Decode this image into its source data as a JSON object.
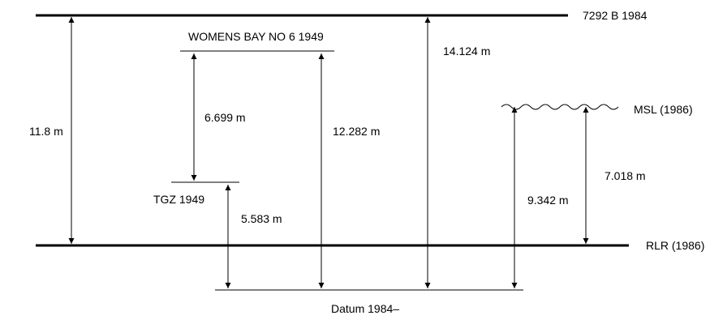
{
  "levels": {
    "top_benchmark": "7292 B 1984",
    "womens_bay": "WOMENS BAY NO 6 1949",
    "tgz": "TGZ 1949",
    "msl": "MSL (1986)",
    "rlr": "RLR (1986)",
    "datum": "Datum 1984–"
  },
  "measurements": {
    "rlr_to_top": "11.8 m",
    "womens_bay_to_tgz": "6.699 m",
    "tgz_to_datum": "5.583 m",
    "womens_bay_to_datum": "12.282 m",
    "top_to_datum": "14.124 m",
    "msl_to_datum": "9.342 m",
    "msl_to_rlr": "7.018 m"
  }
}
